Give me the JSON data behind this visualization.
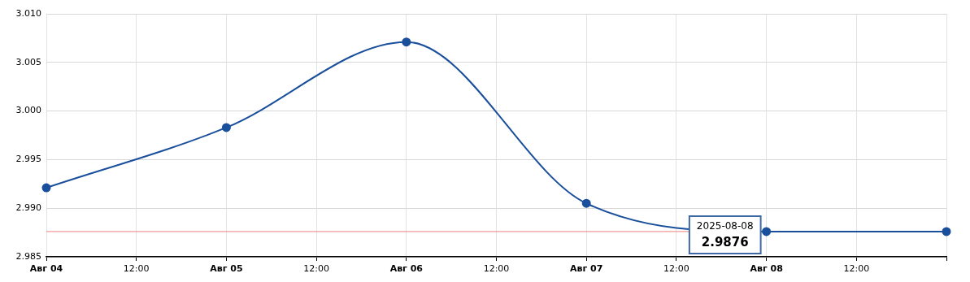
{
  "chart_data": {
    "type": "line",
    "x": [
      "2025-08-04",
      "2025-08-05",
      "2025-08-06",
      "2025-08-07",
      "2025-08-08",
      "2025-08-09"
    ],
    "series": [
      {
        "color": "#1a4f9c",
        "values": [
          2.9921,
          2.9983,
          3.0071,
          2.9905,
          2.9876,
          2.9876
        ]
      }
    ],
    "xlim": [
      "2025-08-04",
      "2025-08-09"
    ],
    "xticks": [
      {
        "value": "2025-08-04",
        "label": "Авг 04"
      },
      {
        "value": "2025-08-04T12:00",
        "label": "12:00"
      },
      {
        "value": "2025-08-05",
        "label": "Авг 05"
      },
      {
        "value": "2025-08-05T12:00",
        "label": "12:00"
      },
      {
        "value": "2025-08-06",
        "label": "Авг 06"
      },
      {
        "value": "2025-08-06T12:00",
        "label": "12:00"
      },
      {
        "value": "2025-08-07",
        "label": "Авг 07"
      },
      {
        "value": "2025-08-07T12:00",
        "label": "12:00"
      },
      {
        "value": "2025-08-08",
        "label": "Авг 08"
      },
      {
        "value": "2025-08-08T12:00",
        "label": "12:00"
      },
      {
        "value": "2025-08-09",
        "label": null
      }
    ],
    "ylim": [
      2.985,
      3.01
    ],
    "yticks": [
      {
        "value": 2.985,
        "label": "2.985"
      },
      {
        "value": 2.99,
        "label": "2.990"
      },
      {
        "value": 2.995,
        "label": "2.995"
      },
      {
        "value": 3.0,
        "label": "3.000"
      },
      {
        "value": 3.005,
        "label": "3.005"
      },
      {
        "value": 3.01,
        "label": "3.010"
      }
    ],
    "ref_lines": [
      {
        "axis": "y",
        "value": 2.9876,
        "color": "#f08080"
      }
    ],
    "annotations": [
      {
        "text": "2025-08-08\n2.9876",
        "x": "2025-08-08",
        "y": 2.9876
      }
    ],
    "grid": true,
    "legend": false,
    "marker": "circle",
    "line_style": "solid"
  }
}
